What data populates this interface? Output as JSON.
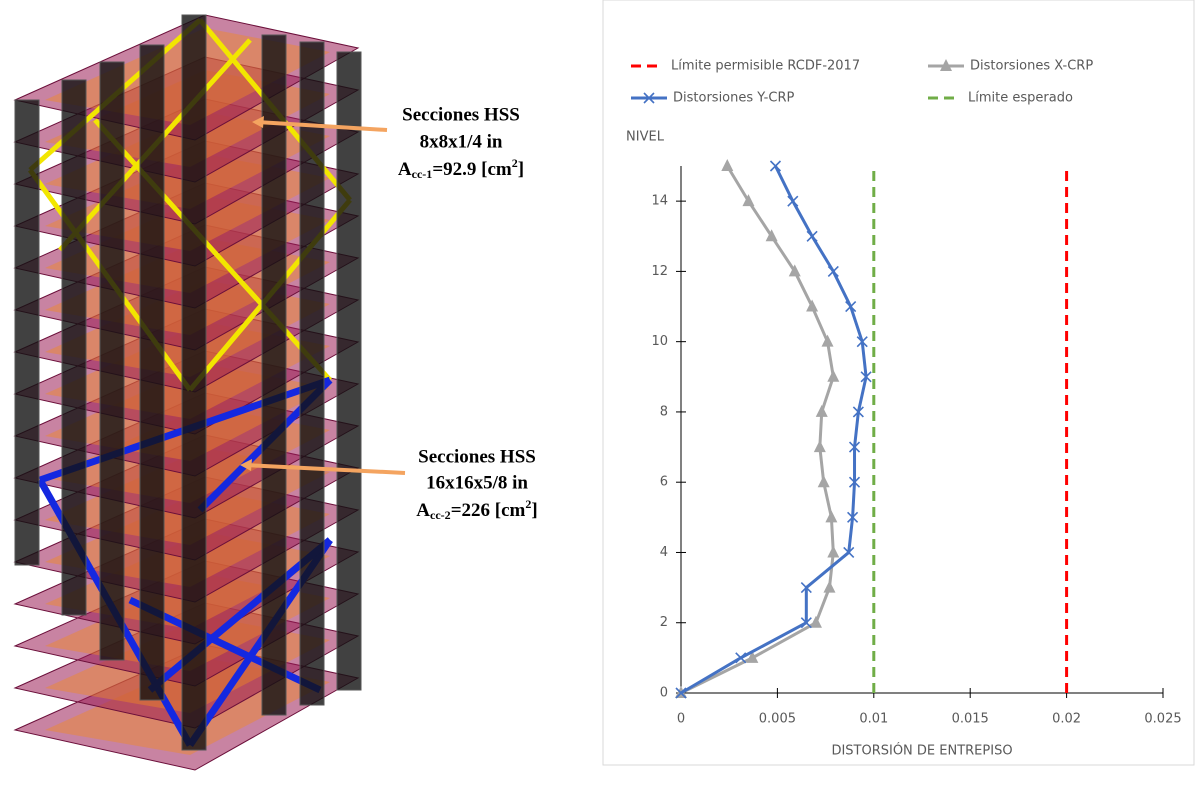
{
  "figure_labels": {
    "upper": {
      "line1": "Secciones HSS",
      "line2": "8x8x1/4 in",
      "area": [
        "A",
        "cc-1",
        "=92.9 [cm",
        "2",
        "]"
      ]
    },
    "lower": {
      "line1": "Secciones HSS",
      "line2": "16x16x5/8 in",
      "area": [
        "A",
        "cc-2",
        "=226 [cm",
        "2",
        "]"
      ]
    }
  },
  "chart_data": {
    "type": "line",
    "xlabel": "DISTORSIÓN DE ENTREPISO",
    "ylabel": "NIVEL",
    "levels": [
      0,
      1,
      2,
      3,
      4,
      5,
      6,
      7,
      8,
      9,
      10,
      11,
      12,
      13,
      14,
      15
    ],
    "series": [
      {
        "name": "Distorsiones X-CRP",
        "color": "#a5a5a5",
        "marker": "triangle",
        "values": [
          0,
          0.0037,
          0.007,
          0.0077,
          0.0079,
          0.0078,
          0.0074,
          0.0072,
          0.0073,
          0.0079,
          0.0076,
          0.0068,
          0.0059,
          0.0047,
          0.0035,
          0.0024
        ]
      },
      {
        "name": "Distorsiones Y-CRP",
        "color": "#4472c4",
        "marker": "x",
        "values": [
          0,
          0.0031,
          0.0065,
          0.0065,
          0.0087,
          0.0089,
          0.009,
          0.009,
          0.0092,
          0.0096,
          0.0094,
          0.0088,
          0.0079,
          0.0068,
          0.0058,
          0.0049
        ]
      }
    ],
    "reference_lines": [
      {
        "name": "Límite permisible RCDF-2017",
        "color": "#ff0000",
        "value": 0.02
      },
      {
        "name": "Límite esperado",
        "color": "#70ad47",
        "value": 0.01
      }
    ],
    "xlim": [
      0,
      0.025
    ],
    "xticks": [
      0,
      0.005,
      0.01,
      0.015,
      0.02,
      0.025
    ],
    "ylim": [
      0,
      15
    ],
    "yticks": [
      0,
      2,
      4,
      6,
      8,
      10,
      12,
      14
    ]
  }
}
